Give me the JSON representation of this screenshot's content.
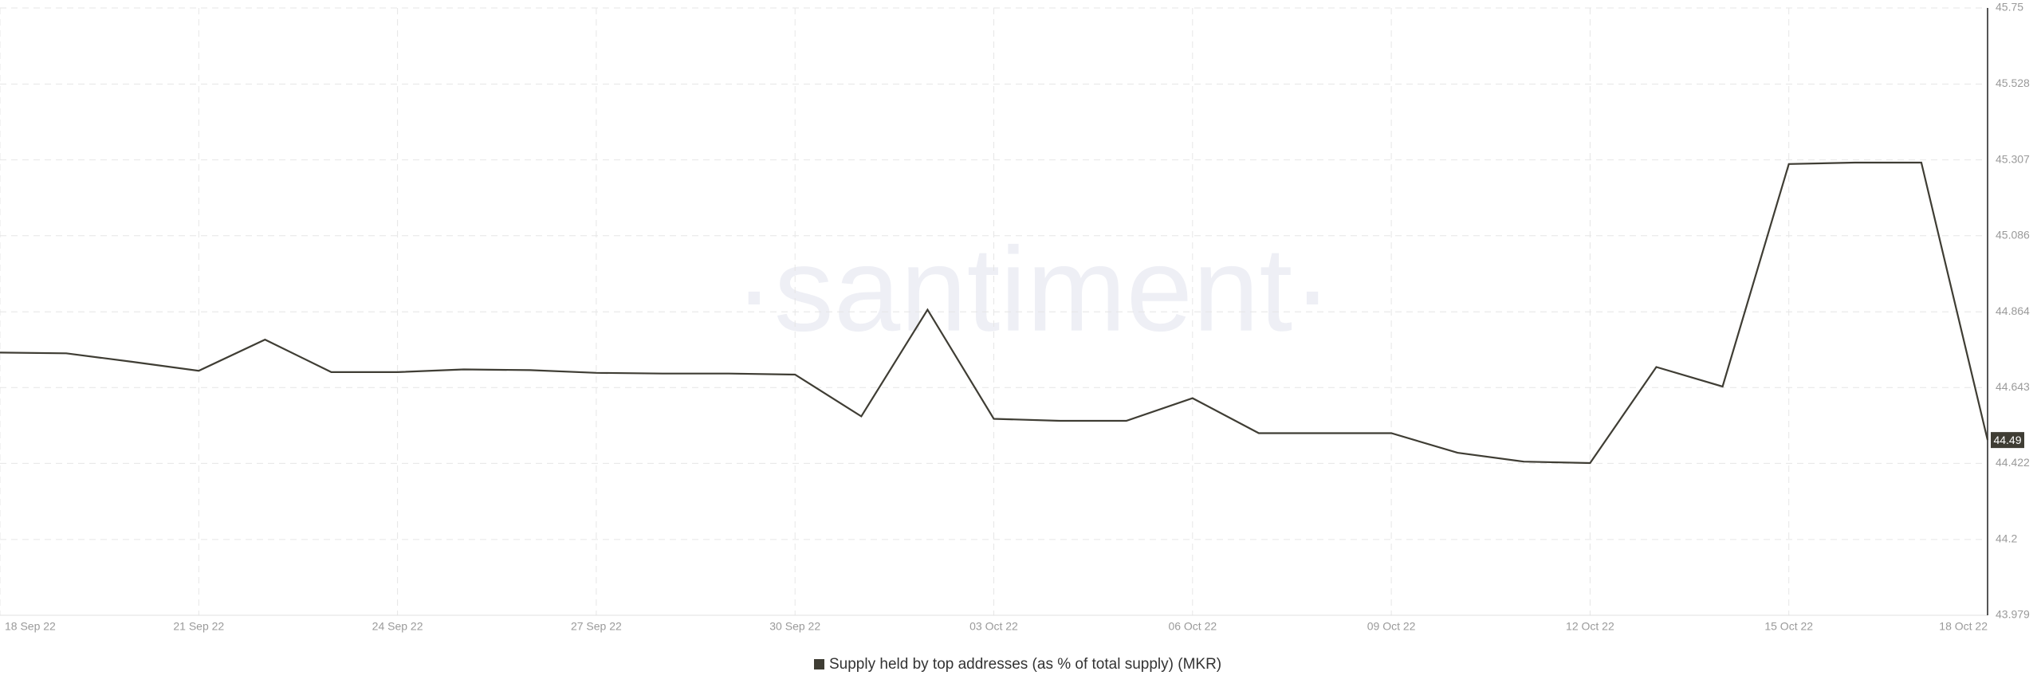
{
  "chart_data": {
    "type": "line",
    "watermark": "·santiment·",
    "categories": [
      "18 Sep 22",
      null,
      null,
      "21 Sep 22",
      null,
      null,
      "24 Sep 22",
      null,
      null,
      "27 Sep 22",
      null,
      null,
      "30 Sep 22",
      null,
      null,
      "03 Oct 22",
      null,
      null,
      "06 Oct 22",
      null,
      null,
      "09 Oct 22",
      null,
      null,
      "12 Oct 22",
      null,
      null,
      "15 Oct 22",
      null,
      null,
      "18 Oct 22"
    ],
    "series": [
      {
        "name": "Supply held by top addresses (as % of total supply) (MKR)",
        "color": "#3f3d34",
        "values": [
          44.745,
          44.743,
          44.718,
          44.692,
          44.783,
          44.688,
          44.688,
          44.696,
          44.694,
          44.686,
          44.684,
          44.684,
          44.681,
          44.559,
          44.87,
          44.552,
          44.546,
          44.546,
          44.612,
          44.51,
          44.51,
          44.51,
          44.453,
          44.427,
          44.423,
          44.703,
          44.646,
          45.295,
          45.299,
          45.299,
          44.49
        ]
      }
    ],
    "ylim": [
      43.979,
      45.75
    ],
    "yticks": [
      43.979,
      44.2,
      44.422,
      44.643,
      44.864,
      45.086,
      45.307,
      45.528,
      45.75
    ],
    "grid": true,
    "y_axis_side": "right"
  }
}
